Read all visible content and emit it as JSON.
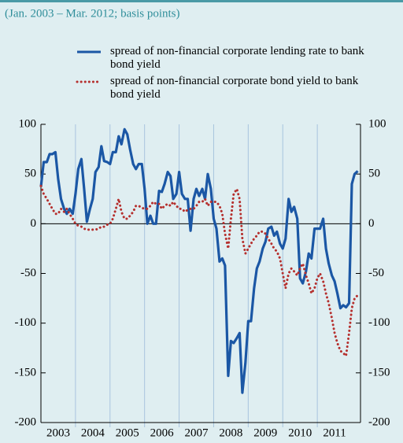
{
  "chart_data": {
    "type": "line",
    "subtitle": "(Jan. 2003 – Mar. 2012; basis points)",
    "x": [
      2003,
      2003.08,
      2003.17,
      2003.25,
      2003.33,
      2003.42,
      2003.5,
      2003.58,
      2003.67,
      2003.75,
      2003.83,
      2003.92,
      2004,
      2004.08,
      2004.17,
      2004.25,
      2004.33,
      2004.42,
      2004.5,
      2004.58,
      2004.67,
      2004.75,
      2004.83,
      2004.92,
      2005,
      2005.08,
      2005.17,
      2005.25,
      2005.33,
      2005.42,
      2005.5,
      2005.58,
      2005.67,
      2005.75,
      2005.83,
      2005.92,
      2006,
      2006.08,
      2006.17,
      2006.25,
      2006.33,
      2006.42,
      2006.5,
      2006.58,
      2006.67,
      2006.75,
      2006.83,
      2006.92,
      2007,
      2007.08,
      2007.17,
      2007.25,
      2007.33,
      2007.42,
      2007.5,
      2007.58,
      2007.67,
      2007.75,
      2007.83,
      2007.92,
      2008,
      2008.08,
      2008.17,
      2008.25,
      2008.33,
      2008.42,
      2008.5,
      2008.58,
      2008.67,
      2008.75,
      2008.83,
      2008.92,
      2009,
      2009.08,
      2009.17,
      2009.25,
      2009.33,
      2009.42,
      2009.5,
      2009.58,
      2009.67,
      2009.75,
      2009.83,
      2009.92,
      2010,
      2010.08,
      2010.17,
      2010.25,
      2010.33,
      2010.42,
      2010.5,
      2010.58,
      2010.67,
      2010.75,
      2010.83,
      2010.92,
      2011,
      2011.08,
      2011.17,
      2011.25,
      2011.33,
      2011.42,
      2011.5,
      2011.58,
      2011.67,
      2011.75,
      2011.83,
      2011.92,
      2012,
      2012.08,
      2012.17
    ],
    "series": [
      {
        "name": "spread of non-financial corporate lending rate to bank bond yield",
        "color": "#1b57a5",
        "dash": "solid",
        "values": [
          37,
          62,
          62,
          70,
          70,
          72,
          45,
          25,
          15,
          10,
          15,
          10,
          30,
          55,
          65,
          35,
          2,
          15,
          25,
          52,
          57,
          78,
          63,
          62,
          60,
          72,
          72,
          88,
          80,
          95,
          90,
          75,
          60,
          55,
          60,
          60,
          35,
          0,
          8,
          0,
          0,
          33,
          32,
          40,
          52,
          48,
          25,
          30,
          52,
          30,
          25,
          25,
          -7,
          25,
          35,
          28,
          35,
          25,
          50,
          35,
          5,
          -5,
          -38,
          -35,
          -42,
          -153,
          -118,
          -120,
          -115,
          -110,
          -170,
          -140,
          -98,
          -98,
          -65,
          -45,
          -38,
          -25,
          -18,
          -5,
          -3,
          -12,
          -8,
          -20,
          -25,
          -15,
          25,
          12,
          17,
          5,
          -55,
          -60,
          -48,
          -30,
          -35,
          -5,
          -5,
          -5,
          5,
          -25,
          -40,
          -52,
          -58,
          -70,
          -85,
          -82,
          -84,
          -80,
          40,
          50,
          53
        ]
      },
      {
        "name": "spread of non-financial corporate bond yield to bank bond yield",
        "color": "#b5302e",
        "dash": "dotted",
        "values": [
          38,
          30,
          25,
          20,
          15,
          10,
          10,
          15,
          12,
          15,
          10,
          5,
          0,
          -2,
          -3,
          -5,
          -6,
          -6,
          -6,
          -6,
          -5,
          -3,
          -3,
          -1,
          0,
          5,
          15,
          25,
          12,
          5,
          5,
          8,
          12,
          18,
          18,
          16,
          15,
          15,
          18,
          22,
          20,
          20,
          15,
          18,
          20,
          18,
          22,
          18,
          15,
          15,
          12,
          14,
          15,
          15,
          18,
          22,
          22,
          25,
          18,
          22,
          22,
          22,
          18,
          10,
          -10,
          -25,
          5,
          30,
          35,
          25,
          -15,
          -30,
          -25,
          -20,
          -15,
          -12,
          -8,
          -8,
          -10,
          -15,
          -20,
          -25,
          -28,
          -35,
          -50,
          -65,
          -50,
          -45,
          -48,
          -52,
          -45,
          -40,
          -52,
          -60,
          -70,
          -65,
          -55,
          -50,
          -58,
          -70,
          -80,
          -95,
          -110,
          -120,
          -128,
          -130,
          -133,
          -110,
          -85,
          -75,
          -72
        ]
      }
    ],
    "xlim": [
      2003,
      2012.25
    ],
    "xticks": [
      {
        "value": 2003.5,
        "label": "2003"
      },
      {
        "value": 2004.5,
        "label": "2004"
      },
      {
        "value": 2005.5,
        "label": "2005"
      },
      {
        "value": 2006.5,
        "label": "2006"
      },
      {
        "value": 2007.5,
        "label": "2007"
      },
      {
        "value": 2008.5,
        "label": "2008"
      },
      {
        "value": 2009.5,
        "label": "2009"
      },
      {
        "value": 2010.5,
        "label": "2010"
      },
      {
        "value": 2011.5,
        "label": "2011"
      }
    ],
    "ylim": [
      -200,
      100
    ],
    "yticks": [
      -200,
      -150,
      -100,
      -50,
      0,
      50,
      100
    ],
    "grid": true
  }
}
